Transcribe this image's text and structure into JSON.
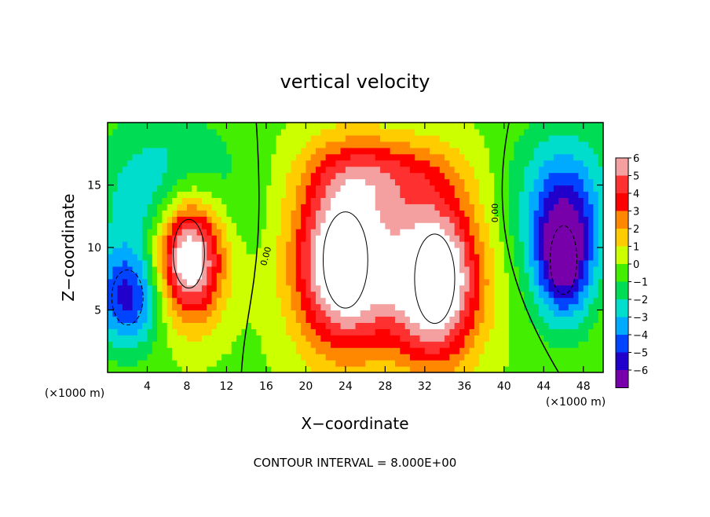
{
  "chart_data": {
    "type": "heatmap",
    "title": "vertical velocity",
    "xlabel": "X−coordinate",
    "ylabel": "Z−coordinate",
    "x_unit_label": "(×1000 m)",
    "xlim": [
      0,
      50
    ],
    "ylim": [
      0,
      20
    ],
    "x_ticks": [
      4,
      8,
      12,
      16,
      20,
      24,
      28,
      32,
      36,
      40,
      44,
      48
    ],
    "y_ticks": [
      5,
      10,
      15
    ],
    "footer": "CONTOUR INTERVAL = 8.000E+00",
    "colorbar": {
      "ticks": [
        6,
        5,
        4,
        3,
        2,
        1,
        0,
        -1,
        -2,
        -3,
        -4,
        -5,
        -6
      ],
      "tick_labels": [
        "6",
        "5",
        "4",
        "3",
        "2",
        "1",
        "0",
        "−1",
        "−2",
        "−3",
        "−4",
        "−5",
        "−6"
      ],
      "colors": [
        "#f4a0a0",
        "#ff3030",
        "#ff0000",
        "#ff8800",
        "#ffcc00",
        "#ccff00",
        "#44ee00",
        "#00dd55",
        "#00ddcc",
        "#00aaff",
        "#0044ff",
        "#2200cc",
        "#7700aa"
      ]
    },
    "contour_labels": [
      "0.00",
      "0.00"
    ],
    "features": [
      {
        "kind": "downdraft",
        "x": 2,
        "z": 6,
        "rx": 3.5,
        "rz": 4,
        "w": -5
      },
      {
        "kind": "updraft",
        "x": 8.2,
        "z": 9.5,
        "rx": 3.5,
        "rz": 5,
        "w": 9
      },
      {
        "kind": "updraft",
        "x": 24,
        "z": 9,
        "rx": 5,
        "rz": 7,
        "w": 9
      },
      {
        "kind": "updraft",
        "x": 33,
        "z": 7.5,
        "rx": 4.5,
        "rz": 6.5,
        "w": 9
      },
      {
        "kind": "downdraft",
        "x": 46,
        "z": 9,
        "rx": 3,
        "rz": 5,
        "w": -6
      },
      {
        "kind": "updraft",
        "x": 28,
        "z": 16,
        "rx": 7,
        "rz": 3,
        "w": 3
      }
    ]
  }
}
